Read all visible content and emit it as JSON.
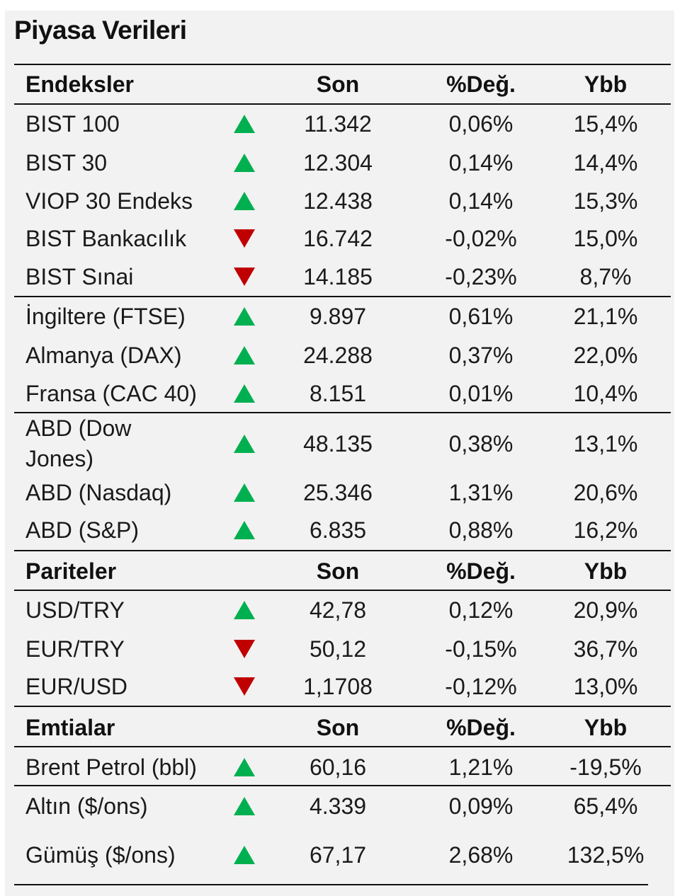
{
  "title": "Piyasa Verileri",
  "colors": {
    "up": "#00b050",
    "down": "#c00000",
    "panel_bg": "#f2f2f2"
  },
  "sections": [
    {
      "header": {
        "name": "Endeksler",
        "son": "Son",
        "deg": "%Değ.",
        "ybb": "Ybb"
      },
      "rows": [
        {
          "name": "BIST 100",
          "dir": "up",
          "son": "11.342",
          "deg": "0,06%",
          "ybb": "15,4%"
        },
        {
          "name": "BIST 30",
          "dir": "up",
          "son": "12.304",
          "deg": "0,14%",
          "ybb": "14,4%"
        },
        {
          "name": "VIOP 30 Endeks",
          "dir": "up",
          "son": "12.438",
          "deg": "0,14%",
          "ybb": "15,3%"
        },
        {
          "name": "BIST Bankacılık",
          "dir": "down",
          "son": "16.742",
          "deg": "-0,02%",
          "ybb": "15,0%"
        },
        {
          "name": "BIST Sınai",
          "dir": "down",
          "son": "14.185",
          "deg": "-0,23%",
          "ybb": "8,7%"
        },
        {
          "name": "İngiltere (FTSE)",
          "dir": "up",
          "son": "9.897",
          "deg": "0,61%",
          "ybb": "21,1%"
        },
        {
          "name": "Almanya (DAX)",
          "dir": "up",
          "son": "24.288",
          "deg": "0,37%",
          "ybb": "22,0%"
        },
        {
          "name": "Fransa (CAC 40)",
          "dir": "up",
          "son": "8.151",
          "deg": "0,01%",
          "ybb": "10,4%"
        },
        {
          "name": "ABD (Dow Jones)",
          "dir": "up",
          "son": "48.135",
          "deg": "0,38%",
          "ybb": "13,1%"
        },
        {
          "name": "ABD (Nasdaq)",
          "dir": "up",
          "son": "25.346",
          "deg": "1,31%",
          "ybb": "20,6%"
        },
        {
          "name": "ABD (S&P)",
          "dir": "up",
          "son": "6.835",
          "deg": "0,88%",
          "ybb": "16,2%"
        }
      ]
    },
    {
      "header": {
        "name": "Pariteler",
        "son": "Son",
        "deg": "%Değ.",
        "ybb": "Ybb"
      },
      "rows": [
        {
          "name": "USD/TRY",
          "dir": "up",
          "son": "42,78",
          "deg": "0,12%",
          "ybb": "20,9%"
        },
        {
          "name": "EUR/TRY",
          "dir": "down",
          "son": "50,12",
          "deg": "-0,15%",
          "ybb": "36,7%"
        },
        {
          "name": "EUR/USD",
          "dir": "down",
          "son": "1,1708",
          "deg": "-0,12%",
          "ybb": "13,0%"
        }
      ]
    },
    {
      "header": {
        "name": "Emtialar",
        "son": "Son",
        "deg": "%Değ.",
        "ybb": "Ybb"
      },
      "rows": [
        {
          "name": "Brent Petrol (bbl)",
          "dir": "up",
          "son": "60,16",
          "deg": "1,21%",
          "ybb": "-19,5%"
        },
        {
          "name": "Altın ($/ons)",
          "dir": "up",
          "son": "4.339",
          "deg": "0,09%",
          "ybb": "65,4%"
        },
        {
          "name": "Gümüş ($/ons)",
          "dir": "up",
          "son": "67,17",
          "deg": "2,68%",
          "ybb": "132,5%"
        }
      ]
    }
  ]
}
